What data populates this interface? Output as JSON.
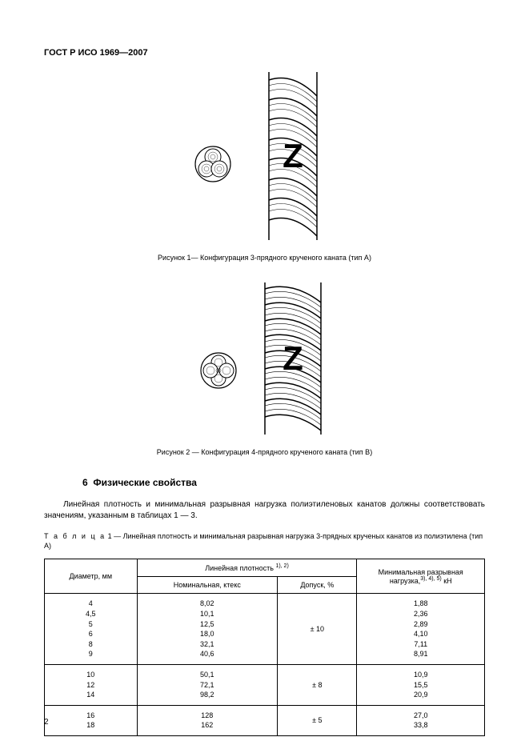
{
  "header": "ГОСТ Р ИСО 1969—2007",
  "figure1": {
    "caption": "Рисунок 1— Конфигурация 3-прядного крученого каната (тип А)",
    "strands": 3,
    "letter": "Z"
  },
  "figure2": {
    "caption": "Рисунок 2 — Конфигурация 4-прядного крученого каната (тип В)",
    "strands": 4,
    "letter": "Z"
  },
  "section": {
    "number": "6",
    "title": "Физические свойства"
  },
  "paragraph": "Линейная плотность и минимальная разрывная нагрузка полиэтиленовых канатов должны соответствовать значениям, указанным в таблицах 1 — 3.",
  "tableCaption": {
    "prefix": "Т а б л и ц а",
    "rest": " 1 — Линейная плотность и минимальная разрывная нагрузка 3-прядных крученых канатов из полиэтилена (тип А)"
  },
  "table": {
    "headers": {
      "diameter": "Диаметр, мм",
      "linearDensity": "Линейная плотность",
      "linearDensitySup": "1), 2)",
      "nominal": "Номинальная, ктекс",
      "tolerance": "Допуск, %",
      "minBreak": "Минимальная разрывная нагрузка,",
      "minBreakSup": "3), 4), 5)",
      "minBreakUnit": " кН"
    },
    "groups": [
      {
        "diameters": [
          "4",
          "4,5",
          "5",
          "6",
          "8",
          "9"
        ],
        "nominal": [
          "8,02",
          "10,1",
          "12,5",
          "18,0",
          "32,1",
          "40,6"
        ],
        "tolerance": "± 10",
        "minBreak": [
          "1,88",
          "2,36",
          "2,89",
          "4,10",
          "7,11",
          "8,91"
        ]
      },
      {
        "diameters": [
          "10",
          "12",
          "14"
        ],
        "nominal": [
          "50,1",
          "72,1",
          "98,2"
        ],
        "tolerance": "± 8",
        "minBreak": [
          "10,9",
          "15,5",
          "20,9"
        ]
      },
      {
        "diameters": [
          "16",
          "18"
        ],
        "nominal": [
          "128",
          "162"
        ],
        "tolerance": "± 5",
        "minBreak": [
          "27,0",
          "33,8"
        ]
      }
    ]
  },
  "pageNumber": "2",
  "style": {
    "ropeColor": "#000000",
    "ropeFill": "#ffffff",
    "tableBorder": "#000000",
    "textColor": "#000000"
  }
}
